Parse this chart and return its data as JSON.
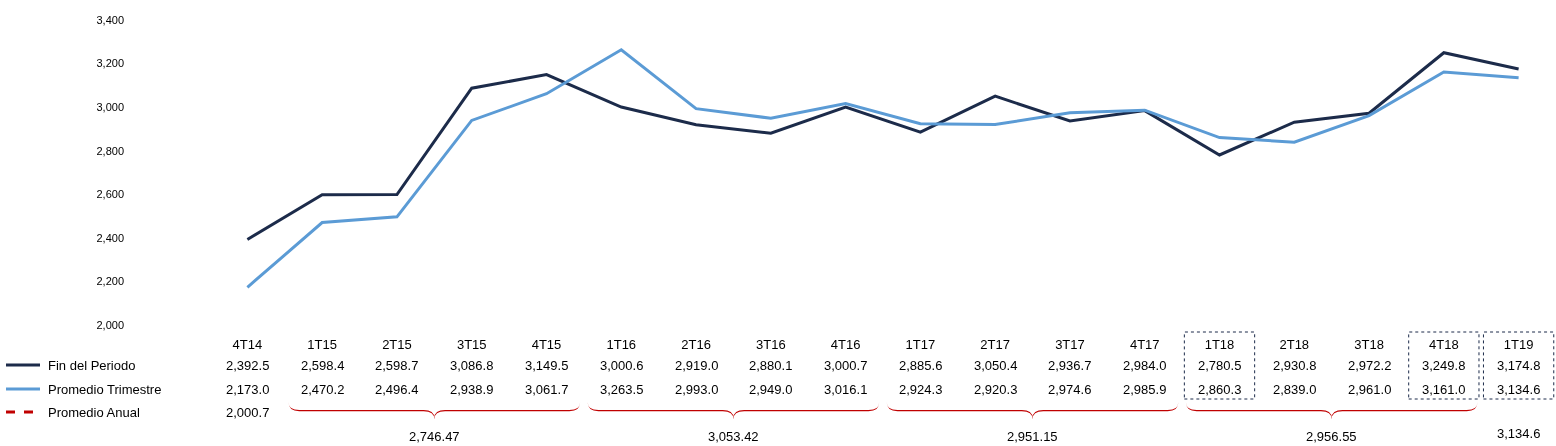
{
  "chart_data": {
    "type": "line",
    "categories": [
      "4T14",
      "1T15",
      "2T15",
      "3T15",
      "4T15",
      "1T16",
      "2T16",
      "3T16",
      "4T16",
      "1T17",
      "2T17",
      "3T17",
      "4T17",
      "1T18",
      "2T18",
      "3T18",
      "4T18",
      "1T19"
    ],
    "series": [
      {
        "name": "Fin del Periodo",
        "color": "#1c2b4a",
        "values": [
          2392.5,
          2598.4,
          2598.7,
          3086.8,
          3149.5,
          3000.6,
          2919.0,
          2880.1,
          3000.7,
          2885.6,
          3050.4,
          2936.7,
          2984.0,
          2780.5,
          2930.8,
          2972.2,
          3249.8,
          3174.8
        ],
        "value_labels": [
          "2,392.5",
          "2,598.4",
          "2,598.7",
          "3,086.8",
          "3,149.5",
          "3,000.6",
          "2,919.0",
          "2,880.1",
          "3,000.7",
          "2,885.6",
          "3,050.4",
          "2,936.7",
          "2,984.0",
          "2,780.5",
          "2,930.8",
          "2,972.2",
          "3,249.8",
          "3,174.8"
        ]
      },
      {
        "name": "Promedio Trimestre",
        "color": "#5b9bd5",
        "values": [
          2173.0,
          2470.2,
          2496.4,
          2938.9,
          3061.7,
          3263.5,
          2993.0,
          2949.0,
          3016.1,
          2924.3,
          2920.3,
          2974.6,
          2985.9,
          2860.3,
          2839.0,
          2961.0,
          3161.0,
          3134.6
        ],
        "value_labels": [
          "2,173.0",
          "2,470.2",
          "2,496.4",
          "2,938.9",
          "3,061.7",
          "3,263.5",
          "2,993.0",
          "2,949.0",
          "3,016.1",
          "2,924.3",
          "2,920.3",
          "2,974.6",
          "2,985.9",
          "2,860.3",
          "2,839.0",
          "2,961.0",
          "3,161.0",
          "3,134.6"
        ]
      },
      {
        "name": "Promedio Anual",
        "color": "#c00000",
        "line_style": "dashed",
        "values": [
          null,
          null,
          null,
          null,
          null,
          null,
          null,
          null,
          null,
          null,
          null,
          null,
          null,
          null,
          null,
          null,
          null,
          null
        ]
      }
    ],
    "annotations": [
      "2,000.7",
      "2,746.47",
      "3,053.42",
      "2,951.15",
      "2,956.55",
      "3,134.6"
    ],
    "ylim": [
      2000,
      3400
    ],
    "yticks": [
      {
        "value": 2000,
        "label": "2,000"
      },
      {
        "value": 2200,
        "label": "2,200"
      },
      {
        "value": 2400,
        "label": "2,400"
      },
      {
        "value": 2600,
        "label": "2,600"
      },
      {
        "value": 2800,
        "label": "2,800"
      },
      {
        "value": 3000,
        "label": "3,000"
      },
      {
        "value": 3200,
        "label": "3,200"
      },
      {
        "value": 3400,
        "label": "3,400"
      }
    ],
    "line_style": "solid",
    "legend": "bottom left"
  }
}
